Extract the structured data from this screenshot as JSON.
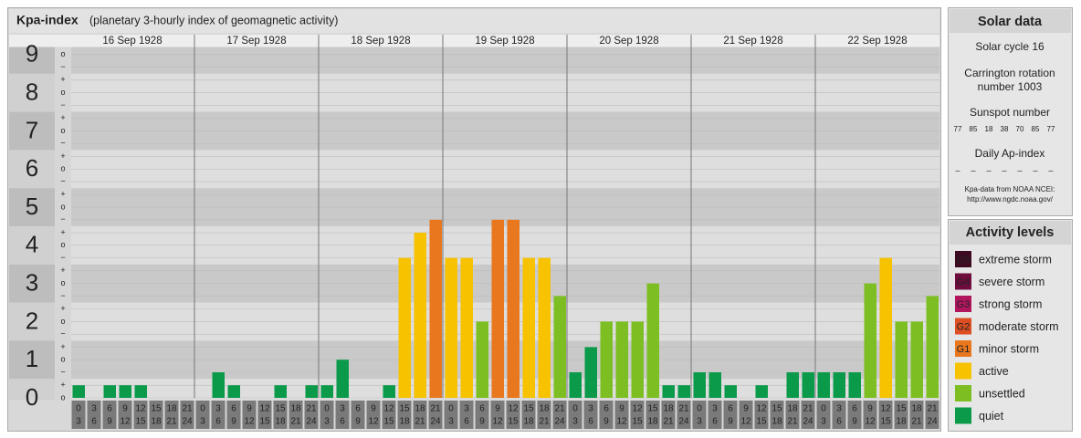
{
  "chart_data": {
    "type": "bar",
    "title": "Kpa-index",
    "subtitle": "(planetary 3-hourly index of geomagnetic activity)",
    "ylim": [
      0,
      9.2
    ],
    "yticks": [
      0,
      1,
      2,
      3,
      4,
      5,
      6,
      7,
      8,
      9
    ],
    "y_minor_ticks": [
      {
        "value": 0,
        "label": "o"
      },
      {
        "value": 0.33,
        "label": "+"
      },
      {
        "value": 0.67,
        "label": "−"
      },
      {
        "value": 1,
        "label": "o"
      },
      {
        "value": 1.33,
        "label": "+"
      },
      {
        "value": 1.67,
        "label": "−"
      },
      {
        "value": 2,
        "label": "o"
      },
      {
        "value": 2.33,
        "label": "+"
      },
      {
        "value": 2.67,
        "label": "−"
      },
      {
        "value": 3,
        "label": "o"
      },
      {
        "value": 3.33,
        "label": "+"
      },
      {
        "value": 3.67,
        "label": "−"
      },
      {
        "value": 4,
        "label": "o"
      },
      {
        "value": 4.33,
        "label": "+"
      },
      {
        "value": 4.67,
        "label": "−"
      },
      {
        "value": 5,
        "label": "o"
      },
      {
        "value": 5.33,
        "label": "+"
      },
      {
        "value": 5.67,
        "label": "−"
      },
      {
        "value": 6,
        "label": "o"
      },
      {
        "value": 6.33,
        "label": "+"
      },
      {
        "value": 6.67,
        "label": "−"
      },
      {
        "value": 7,
        "label": "o"
      },
      {
        "value": 7.33,
        "label": "+"
      },
      {
        "value": 7.67,
        "label": "−"
      },
      {
        "value": 8,
        "label": "o"
      },
      {
        "value": 8.33,
        "label": "+"
      },
      {
        "value": 8.67,
        "label": "−"
      },
      {
        "value": 9,
        "label": "o"
      }
    ],
    "grid": true,
    "hour_slots": [
      [
        "0",
        "3"
      ],
      [
        "3",
        "6"
      ],
      [
        "6",
        "9"
      ],
      [
        "9",
        "12"
      ],
      [
        "12",
        "15"
      ],
      [
        "15",
        "18"
      ],
      [
        "18",
        "21"
      ],
      [
        "21",
        "24"
      ]
    ],
    "days": [
      {
        "date": "16 Sep 1928",
        "values": [
          0.33,
          0,
          0.33,
          0.33,
          0.33,
          0,
          0,
          0
        ],
        "colors": [
          "#0a9a4a",
          "#0a9a4a",
          "#0a9a4a",
          "#0a9a4a",
          "#0a9a4a",
          "#0a9a4a",
          "#0a9a4a",
          "#0a9a4a"
        ]
      },
      {
        "date": "17 Sep 1928",
        "values": [
          0,
          0.67,
          0.33,
          0,
          0,
          0.33,
          0,
          0.33
        ],
        "colors": [
          "#0a9a4a",
          "#0a9a4a",
          "#0a9a4a",
          "#0a9a4a",
          "#0a9a4a",
          "#0a9a4a",
          "#0a9a4a",
          "#0a9a4a"
        ]
      },
      {
        "date": "18 Sep 1928",
        "values": [
          0.33,
          1,
          0,
          0,
          0.33,
          3.67,
          4.33,
          4.67
        ],
        "colors": [
          "#0a9a4a",
          "#0a9a4a",
          "#0a9a4a",
          "#0a9a4a",
          "#0a9a4a",
          "#f7c200",
          "#f7c200",
          "#e8771e"
        ]
      },
      {
        "date": "19 Sep 1928",
        "values": [
          3.67,
          3.67,
          2,
          4.67,
          4.67,
          3.67,
          3.67,
          2.67
        ],
        "colors": [
          "#f7c200",
          "#f7c200",
          "#7dbf22",
          "#e8771e",
          "#e8771e",
          "#f7c200",
          "#f7c200",
          "#7dbf22"
        ]
      },
      {
        "date": "20 Sep 1928",
        "values": [
          0.67,
          1.33,
          2,
          2,
          2,
          3,
          0.33,
          0.33
        ],
        "colors": [
          "#0a9a4a",
          "#0a9a4a",
          "#7dbf22",
          "#7dbf22",
          "#7dbf22",
          "#7dbf22",
          "#0a9a4a",
          "#0a9a4a"
        ]
      },
      {
        "date": "21 Sep 1928",
        "values": [
          0.67,
          0.67,
          0.33,
          0,
          0.33,
          0,
          0.67,
          0.67
        ],
        "colors": [
          "#0a9a4a",
          "#0a9a4a",
          "#0a9a4a",
          "#0a9a4a",
          "#0a9a4a",
          "#0a9a4a",
          "#0a9a4a",
          "#0a9a4a"
        ]
      },
      {
        "date": "22 Sep 1928",
        "values": [
          0.67,
          0.67,
          0.67,
          3,
          3.67,
          2,
          2,
          2.67
        ],
        "colors": [
          "#0a9a4a",
          "#0a9a4a",
          "#0a9a4a",
          "#7dbf22",
          "#f7c200",
          "#7dbf22",
          "#7dbf22",
          "#7dbf22"
        ]
      }
    ]
  },
  "solar_data": {
    "title": "Solar data",
    "solar_cycle": "Solar cycle 16",
    "carrington": [
      "Carrington rotation",
      "number 1003"
    ],
    "sunspot_title": "Sunspot number",
    "sunspot_numbers": [
      77,
      85,
      18,
      38,
      70,
      85,
      77
    ],
    "ap_title": "Daily Ap-index",
    "ap_index": [
      "–",
      "–",
      "–",
      "–",
      "–",
      "–",
      "–"
    ],
    "source": [
      "Kpa-data from NOAA NCEI:",
      "http://www.ngdc.noaa.gov/"
    ]
  },
  "activity_levels": {
    "title": "Activity levels",
    "items": [
      {
        "badge": "G5",
        "label": "extreme storm",
        "color": "#3e0a22"
      },
      {
        "badge": "G4",
        "label": "severe storm",
        "color": "#6e0c3e"
      },
      {
        "badge": "G3",
        "label": "strong storm",
        "color": "#b0165e"
      },
      {
        "badge": "G2",
        "label": "moderate storm",
        "color": "#dd4f22"
      },
      {
        "badge": "G1",
        "label": "minor storm",
        "color": "#e8771e"
      },
      {
        "badge": null,
        "label": "active",
        "color": "#f7c200"
      },
      {
        "badge": null,
        "label": "unsettled",
        "color": "#7dbf22"
      },
      {
        "badge": null,
        "label": "quiet",
        "color": "#0a9a4a"
      }
    ]
  }
}
